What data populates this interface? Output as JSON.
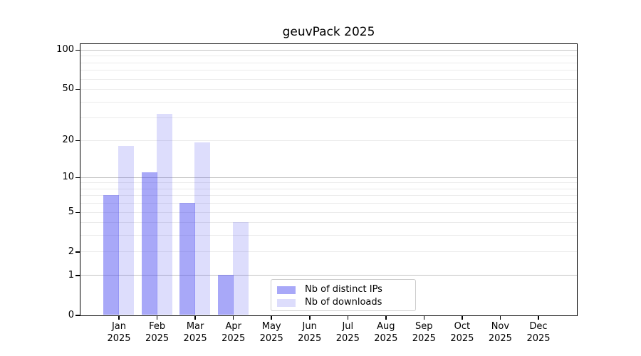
{
  "chart_data": {
    "type": "bar",
    "title": "geuvPack 2025",
    "categories": [
      "Jan",
      "Feb",
      "Mar",
      "Apr",
      "May",
      "Jun",
      "Jul",
      "Aug",
      "Sep",
      "Oct",
      "Nov",
      "Dec"
    ],
    "year_label": "2025",
    "series": [
      {
        "name": "Nb of distinct IPs",
        "color": "#4646f0",
        "alpha": 0.47,
        "values": [
          7,
          11,
          6,
          1,
          0,
          0,
          0,
          0,
          0,
          0,
          0,
          0
        ]
      },
      {
        "name": "Nb of downloads",
        "color": "#4646f0",
        "alpha": 0.185,
        "values": [
          18,
          32,
          19,
          4,
          0,
          0,
          0,
          0,
          0,
          0,
          0,
          0
        ]
      }
    ],
    "xlabel": "",
    "ylabel": "",
    "scale": "log1p",
    "ylim": [
      0,
      110
    ],
    "yticks": [
      0,
      1,
      2,
      5,
      10,
      20,
      50,
      100
    ],
    "major_gridlines": [
      1,
      10,
      100
    ],
    "minor_gridlines": [
      2,
      3,
      4,
      5,
      6,
      7,
      8,
      9,
      20,
      30,
      40,
      50,
      60,
      70,
      80,
      90
    ],
    "grid": true,
    "legend_position": "lower center"
  },
  "colors": {
    "background": "#ffffff",
    "spine": "#000000",
    "major_grid": "#c3c3c3",
    "minor_grid": "#ebebeb",
    "text": "#000000"
  }
}
